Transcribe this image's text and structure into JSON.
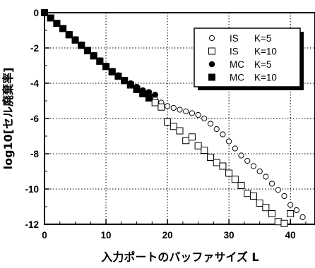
{
  "chart_data": {
    "type": "scatter",
    "xlabel": "入力ポートのバッファサイズ L",
    "ylabel": "log10[セル廃棄率]",
    "xlim": [
      0,
      44
    ],
    "ylim": [
      -12,
      0
    ],
    "x_ticks": [
      "0",
      "10",
      "20",
      "30",
      "40"
    ],
    "y_ticks": [
      "0",
      "-2",
      "-4",
      "-6",
      "-8",
      "-10",
      "-12"
    ],
    "grid": true,
    "legend_position": "top-right",
    "series": [
      {
        "name": "IS K=5",
        "marker": "open-circle",
        "x": [
          0,
          1,
          2,
          3,
          4,
          5,
          6,
          7,
          8,
          9,
          10,
          11,
          12,
          13,
          14,
          15,
          16,
          17,
          18,
          19,
          20,
          21,
          22,
          23,
          24,
          25,
          26,
          27,
          28,
          29,
          30,
          31,
          32,
          33,
          34,
          35,
          36,
          37,
          38,
          39,
          40,
          41,
          42
        ],
        "y": [
          0,
          -0.3,
          -0.6,
          -0.9,
          -1.2,
          -1.5,
          -1.8,
          -2.1,
          -2.4,
          -2.7,
          -3.0,
          -3.3,
          -3.55,
          -3.8,
          -4.05,
          -4.3,
          -4.55,
          -4.7,
          -4.9,
          -5.1,
          -5.3,
          -5.4,
          -5.5,
          -5.6,
          -5.7,
          -5.8,
          -6.0,
          -6.3,
          -6.6,
          -6.9,
          -7.3,
          -7.7,
          -8.1,
          -8.4,
          -8.7,
          -9.0,
          -9.3,
          -9.7,
          -10.05,
          -10.4,
          -10.9,
          -11.2,
          -11.6
        ]
      },
      {
        "name": "IS K=10",
        "marker": "open-square",
        "x": [
          0,
          1,
          2,
          3,
          4,
          5,
          6,
          7,
          8,
          9,
          10,
          11,
          12,
          13,
          14,
          15,
          16,
          17,
          18,
          19,
          20,
          21,
          22,
          23,
          24,
          25,
          26,
          27,
          28,
          29,
          30,
          31,
          32,
          33,
          34,
          35,
          36,
          37,
          38,
          39,
          40
        ],
        "y": [
          0,
          -0.3,
          -0.6,
          -0.9,
          -1.25,
          -1.55,
          -1.85,
          -2.15,
          -2.45,
          -2.75,
          -3.05,
          -3.35,
          -3.6,
          -3.85,
          -4.1,
          -4.35,
          -4.6,
          -4.85,
          -5.1,
          -5.35,
          -6.2,
          -6.45,
          -6.7,
          -7.25,
          -7.05,
          -7.55,
          -7.8,
          -8.2,
          -8.5,
          -8.7,
          -9.1,
          -9.45,
          -9.8,
          -10.25,
          -10.4,
          -10.8,
          -11.05,
          -11.4,
          -11.85,
          -11.95,
          -11.4
        ]
      },
      {
        "name": "MC K=5",
        "marker": "filled-circle",
        "x": [
          0,
          1,
          2,
          3,
          4,
          5,
          6,
          7,
          8,
          9,
          10,
          11,
          12,
          13,
          14,
          15,
          16,
          17,
          18
        ],
        "y": [
          0,
          -0.3,
          -0.6,
          -0.9,
          -1.2,
          -1.5,
          -1.8,
          -2.1,
          -2.4,
          -2.7,
          -3.0,
          -3.3,
          -3.55,
          -3.8,
          -4.0,
          -4.2,
          -4.4,
          -4.5,
          -4.65
        ]
      },
      {
        "name": "MC K=10",
        "marker": "filled-square",
        "x": [
          0,
          1,
          2,
          3,
          4,
          5,
          6,
          7,
          8,
          9,
          10,
          11,
          12,
          13,
          14,
          15,
          16,
          17
        ],
        "y": [
          0,
          -0.3,
          -0.6,
          -0.9,
          -1.25,
          -1.55,
          -1.85,
          -2.15,
          -2.45,
          -2.75,
          -3.05,
          -3.35,
          -3.6,
          -3.85,
          -4.1,
          -4.35,
          -4.6,
          -4.8
        ]
      }
    ],
    "legend": [
      {
        "method": "IS",
        "param": "K=5"
      },
      {
        "method": "IS",
        "param": "K=10"
      },
      {
        "method": "MC",
        "param": "K=5"
      },
      {
        "method": "MC",
        "param": "K=10"
      }
    ]
  }
}
